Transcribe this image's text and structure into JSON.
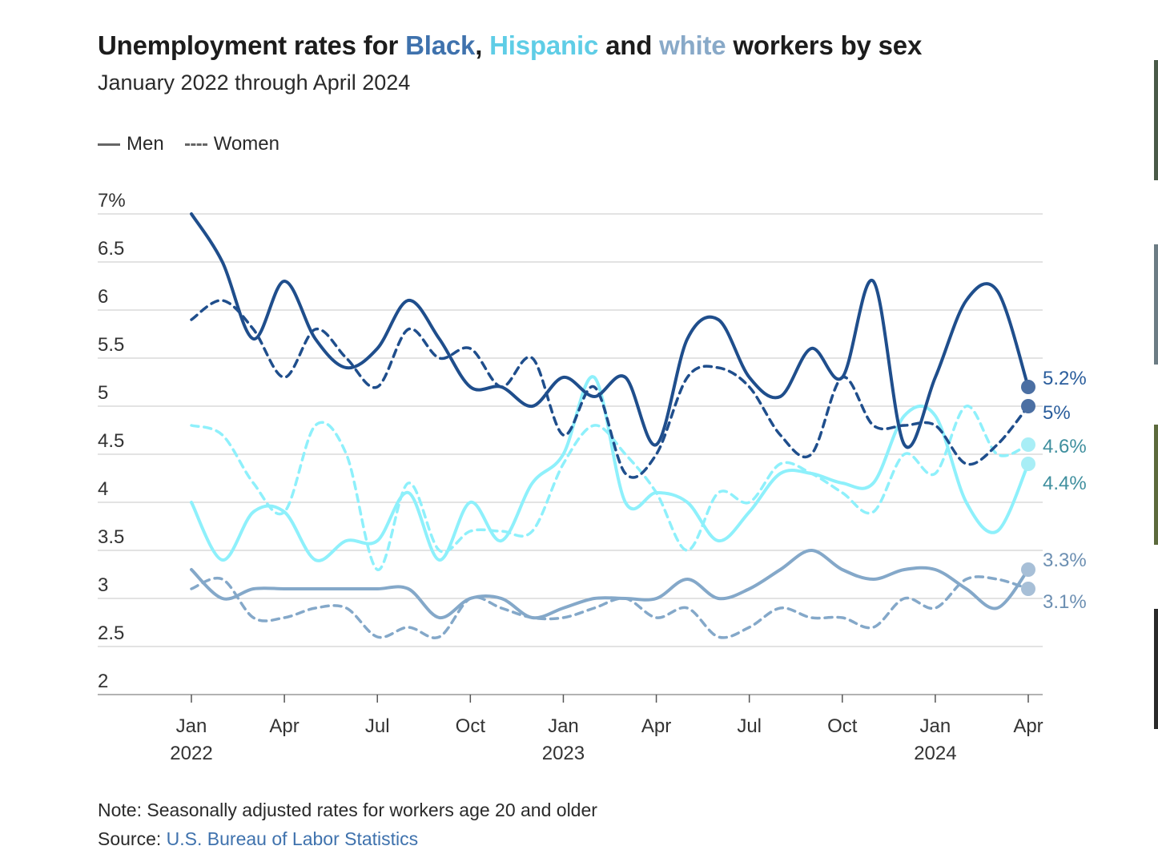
{
  "title": {
    "prefix": "Unemployment rates for ",
    "black": "Black",
    "comma": ", ",
    "hispanic": "Hispanic",
    "and": " and ",
    "white": "white",
    "suffix": " workers by sex"
  },
  "subtitle": "January 2022 through April 2024",
  "legend": {
    "men": "Men",
    "women": "Women"
  },
  "note": "Note: Seasonally adjusted rates for workers age 20 and older",
  "source": {
    "prefix": "Source: ",
    "link": "U.S. Bureau of Labor Statistics"
  },
  "colors": {
    "black": "#1f4e8c",
    "hispanic": "#8ef0fb",
    "white": "#84a8c9",
    "grid": "#d2d2d2",
    "axis": "#999999",
    "hisp_label": "#3f8f9e",
    "white_label": "#6c8fb2",
    "black_label": "#2a5d9c"
  },
  "chart_data": {
    "type": "line",
    "title": "Unemployment rates for Black, Hispanic and white workers by sex",
    "subtitle": "January 2022 through April 2024",
    "xlabel": "",
    "ylabel": "",
    "ylim": [
      2,
      7
    ],
    "yticks": [
      2,
      2.5,
      3,
      3.5,
      4,
      4.5,
      5,
      5.5,
      6,
      6.5,
      7
    ],
    "ytick_labels": [
      "2",
      "2.5",
      "3",
      "3.5",
      "4",
      "4.5",
      "5",
      "5.5",
      "6",
      "6.5",
      "7%"
    ],
    "x_ticks": [
      {
        "i": 0,
        "month": "Jan",
        "year": "2022"
      },
      {
        "i": 3,
        "month": "Apr",
        "year": ""
      },
      {
        "i": 6,
        "month": "Jul",
        "year": ""
      },
      {
        "i": 9,
        "month": "Oct",
        "year": ""
      },
      {
        "i": 12,
        "month": "Jan",
        "year": "2023"
      },
      {
        "i": 15,
        "month": "Apr",
        "year": ""
      },
      {
        "i": 18,
        "month": "Jul",
        "year": ""
      },
      {
        "i": 21,
        "month": "Oct",
        "year": ""
      },
      {
        "i": 24,
        "month": "Jan",
        "year": "2024"
      },
      {
        "i": 27,
        "month": "Apr",
        "year": ""
      }
    ],
    "grid": true,
    "legend_position": "top-left",
    "series": [
      {
        "name": "Black men",
        "group": "black",
        "style": "solid",
        "end_label": "5.2%",
        "values": [
          7.0,
          6.5,
          5.7,
          6.3,
          5.7,
          5.4,
          5.6,
          6.1,
          5.7,
          5.2,
          5.2,
          5.0,
          5.3,
          5.1,
          5.3,
          4.6,
          5.7,
          5.9,
          5.3,
          5.1,
          5.6,
          5.3,
          6.3,
          4.6,
          5.3,
          6.1,
          6.2,
          5.2
        ]
      },
      {
        "name": "Black women",
        "group": "black",
        "style": "dashed",
        "end_label": "5%",
        "values": [
          5.9,
          6.1,
          5.8,
          5.3,
          5.8,
          5.5,
          5.2,
          5.8,
          5.5,
          5.6,
          5.2,
          5.5,
          4.7,
          5.2,
          4.3,
          4.5,
          5.3,
          5.4,
          5.2,
          4.7,
          4.5,
          5.3,
          4.8,
          4.8,
          4.8,
          4.4,
          4.6,
          5.0
        ]
      },
      {
        "name": "Hispanic men",
        "group": "hispanic",
        "style": "solid",
        "end_label": "4.4%",
        "values": [
          4.0,
          3.4,
          3.9,
          3.9,
          3.4,
          3.6,
          3.6,
          4.1,
          3.4,
          4.0,
          3.6,
          4.2,
          4.5,
          5.3,
          4.0,
          4.1,
          4.0,
          3.6,
          3.9,
          4.3,
          4.3,
          4.2,
          4.2,
          4.9,
          4.9,
          4.0,
          3.7,
          4.4
        ]
      },
      {
        "name": "Hispanic women",
        "group": "hispanic",
        "style": "dashed",
        "end_label": "4.6%",
        "values": [
          4.8,
          4.7,
          4.2,
          3.9,
          4.8,
          4.5,
          3.3,
          4.2,
          3.5,
          3.7,
          3.7,
          3.7,
          4.4,
          4.8,
          4.5,
          4.1,
          3.5,
          4.1,
          4.0,
          4.4,
          4.3,
          4.1,
          3.9,
          4.5,
          4.3,
          5.0,
          4.5,
          4.6
        ]
      },
      {
        "name": "white men",
        "group": "white",
        "style": "solid",
        "end_label": "3.3%",
        "values": [
          3.3,
          3.0,
          3.1,
          3.1,
          3.1,
          3.1,
          3.1,
          3.1,
          2.8,
          3.0,
          3.0,
          2.8,
          2.9,
          3.0,
          3.0,
          3.0,
          3.2,
          3.0,
          3.1,
          3.3,
          3.5,
          3.3,
          3.2,
          3.3,
          3.3,
          3.1,
          2.9,
          3.3
        ]
      },
      {
        "name": "white women",
        "group": "white",
        "style": "dashed",
        "end_label": "3.1%",
        "values": [
          3.1,
          3.2,
          2.8,
          2.8,
          2.9,
          2.9,
          2.6,
          2.7,
          2.6,
          3.0,
          2.9,
          2.8,
          2.8,
          2.9,
          3.0,
          2.8,
          2.9,
          2.6,
          2.7,
          2.9,
          2.8,
          2.8,
          2.7,
          3.0,
          2.9,
          3.2,
          3.2,
          3.1
        ]
      }
    ]
  }
}
